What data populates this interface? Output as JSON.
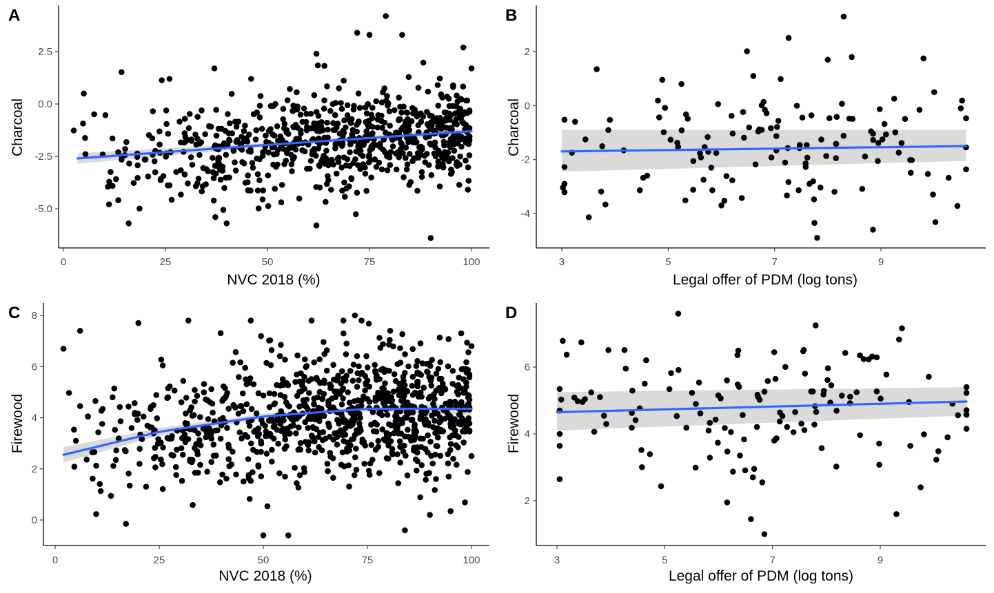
{
  "colors": {
    "points": "#000000",
    "fit_line": "#3366ff",
    "confidence_band": "#d3d3d3"
  },
  "chart_data": [
    {
      "id": "A",
      "panel_label": "A",
      "type": "scatter",
      "xlabel": "NVC 2018 (%)",
      "ylabel": "Charcoal",
      "xlim": [
        0,
        100
      ],
      "ylim": [
        -6.3,
        4.3
      ],
      "xticks": [
        0,
        25,
        50,
        75,
        100
      ],
      "xtick_labels": [
        "0",
        "25",
        "50",
        "75",
        "100"
      ],
      "yticks": [
        -5,
        -2.5,
        0,
        2.5
      ],
      "ytick_labels": [
        "-5.0",
        "-2.5",
        "0.0",
        "2.5"
      ],
      "n_points": 780,
      "sample_points": [
        [
          5,
          0.5
        ],
        [
          16,
          -5.7
        ],
        [
          26,
          1.2
        ],
        [
          37,
          1.7
        ],
        [
          46,
          1.2
        ],
        [
          62,
          -5.8
        ],
        [
          62,
          2.4
        ],
        [
          72,
          3.4
        ],
        [
          75,
          3.3
        ],
        [
          79,
          4.2
        ],
        [
          83,
          3.3
        ],
        [
          90,
          -6.4
        ],
        [
          98,
          2.7
        ],
        [
          100,
          1.7
        ],
        [
          40,
          -5.7
        ]
      ],
      "trend": {
        "x": [
          3.5,
          50,
          100
        ],
        "y": [
          -2.6,
          -1.95,
          -1.3
        ],
        "lower": [
          -2.85,
          -2.05,
          -1.45
        ],
        "upper": [
          -2.35,
          -1.85,
          -1.15
        ]
      }
    },
    {
      "id": "B",
      "panel_label": "B",
      "type": "scatter",
      "xlabel": "Legal offer of PDM (log tons)",
      "ylabel": "Charcoal",
      "xlim": [
        2.7,
        10.8
      ],
      "ylim": [
        -4.9,
        3.6
      ],
      "xticks": [
        3,
        5,
        7,
        9
      ],
      "xtick_labels": [
        "3",
        "5",
        "7",
        "9"
      ],
      "yticks": [
        -4,
        -2,
        0,
        2
      ],
      "ytick_labels": [
        "-4",
        "-2",
        "0",
        "2"
      ],
      "n_points": 140,
      "sample_points": [
        [
          3.05,
          -2.9
        ],
        [
          3.25,
          -0.6
        ],
        [
          5.25,
          0.8
        ],
        [
          6.6,
          1.1
        ],
        [
          7.8,
          -4.9
        ],
        [
          8.0,
          1.7
        ],
        [
          8.3,
          3.3
        ],
        [
          8.45,
          1.8
        ],
        [
          9.8,
          1.75
        ],
        [
          10.0,
          0.5
        ],
        [
          10.5,
          -0.1
        ],
        [
          10.6,
          -1.55
        ],
        [
          8.85,
          -4.6
        ],
        [
          7.75,
          -4.35
        ],
        [
          6.0,
          -3.7
        ]
      ],
      "trend": {
        "x": [
          3.0,
          10.6
        ],
        "y": [
          -1.7,
          -1.5
        ],
        "lower": [
          -2.45,
          -2.05
        ],
        "upper": [
          -0.9,
          -0.9
        ]
      }
    },
    {
      "id": "C",
      "panel_label": "C",
      "type": "scatter",
      "xlabel": "NVC 2018 (%)",
      "ylabel": "Firewood",
      "xlim": [
        0,
        100
      ],
      "ylim": [
        -0.7,
        8.1
      ],
      "xticks": [
        0,
        25,
        50,
        75,
        100
      ],
      "xtick_labels": [
        "0",
        "25",
        "50",
        "75",
        "100"
      ],
      "yticks": [
        0,
        2,
        4,
        6,
        8
      ],
      "ytick_labels": [
        "0",
        "2",
        "4",
        "6",
        "8"
      ],
      "n_points": 960,
      "sample_points": [
        [
          2,
          6.7
        ],
        [
          6,
          7.4
        ],
        [
          20,
          7.7
        ],
        [
          32,
          7.8
        ],
        [
          72,
          8.0
        ],
        [
          50,
          -0.6
        ],
        [
          56,
          -0.6
        ],
        [
          84,
          -0.4
        ],
        [
          17,
          -0.15
        ],
        [
          90,
          0.2
        ],
        [
          100,
          6.8
        ],
        [
          100,
          2.5
        ]
      ],
      "trend": {
        "x": [
          2,
          25,
          50,
          75,
          100
        ],
        "y": [
          2.55,
          3.45,
          4.05,
          4.35,
          4.35
        ],
        "lower": [
          2.25,
          3.3,
          3.95,
          4.25,
          4.1
        ],
        "upper": [
          2.85,
          3.6,
          4.15,
          4.45,
          4.6
        ]
      }
    },
    {
      "id": "D",
      "panel_label": "D",
      "type": "scatter",
      "xlabel": "Legal offer of PDM (log tons)",
      "ylabel": "Firewood",
      "xlim": [
        2.7,
        10.8
      ],
      "ylim": [
        0.9,
        7.8
      ],
      "xticks": [
        3,
        5,
        7,
        9
      ],
      "xtick_labels": [
        "3",
        "5",
        "7",
        "9"
      ],
      "yticks": [
        2,
        4,
        6
      ],
      "ytick_labels": [
        "2",
        "4",
        "6"
      ],
      "n_points": 140,
      "sample_points": [
        [
          3.05,
          4.0
        ],
        [
          5.25,
          7.6
        ],
        [
          7.8,
          7.25
        ],
        [
          6.85,
          1.0
        ],
        [
          6.6,
          1.45
        ],
        [
          9.3,
          1.6
        ],
        [
          9.75,
          2.4
        ],
        [
          10.6,
          5.4
        ],
        [
          10.25,
          3.9
        ],
        [
          3.8,
          5.1
        ]
      ],
      "trend": {
        "x": [
          3.0,
          10.6
        ],
        "y": [
          4.65,
          4.97
        ],
        "lower": [
          4.1,
          4.55
        ],
        "upper": [
          5.25,
          5.4
        ]
      }
    }
  ]
}
